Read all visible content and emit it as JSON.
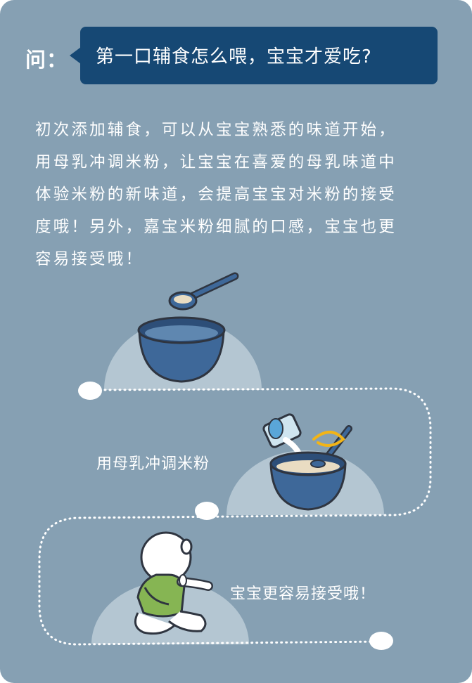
{
  "question": {
    "label": "问：",
    "text": "第一口辅食怎么喂，宝宝才爱吃?"
  },
  "answer": {
    "lines": [
      "初次添加辅食，可以从宝宝熟悉的味道开始，",
      "用母乳冲调米粉，让宝宝在喜爱的母乳味道中",
      "体验米粉的新味道，会提高宝宝对米粉的接受",
      "度哦！另外，嘉宝米粉细腻的口感，宝宝也更",
      "容易接受哦！"
    ]
  },
  "steps": [
    {
      "label": "用母乳冲调米粉"
    },
    {
      "label": "宝宝更容易接受哦！"
    }
  ],
  "icons": [
    "spoon-icon",
    "bowl-icon",
    "milk-cup-icon",
    "baby-icon"
  ],
  "colors": {
    "background": "#86a0b3",
    "bubble": "#164874",
    "bowl": "#3e6899",
    "outline": "#2f3540",
    "mound": "#b4c6d2",
    "shirt": "#86b553",
    "accent": "#f2b417"
  }
}
